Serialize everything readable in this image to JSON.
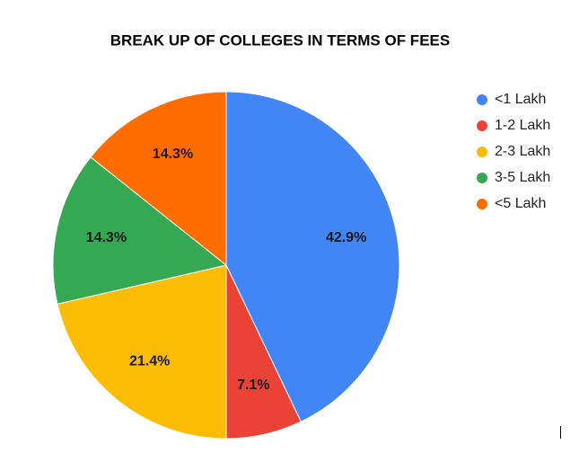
{
  "chart_data": {
    "type": "pie",
    "title": "BREAK UP OF COLLEGES IN TERMS OF FEES",
    "categories": [
      "<1 Lakh",
      "1-2 Lakh",
      "2-3 Lakh",
      "3-5 Lakh",
      "<5 Lakh"
    ],
    "values": [
      42.9,
      7.1,
      21.4,
      14.3,
      14.3
    ],
    "value_labels": [
      "42.9%",
      "7.1%",
      "21.4%",
      "14.3%",
      "14.3%"
    ],
    "colors": [
      "#4285f4",
      "#ea4335",
      "#fbbc04",
      "#34a853",
      "#ff6d01"
    ],
    "legend": "right"
  }
}
